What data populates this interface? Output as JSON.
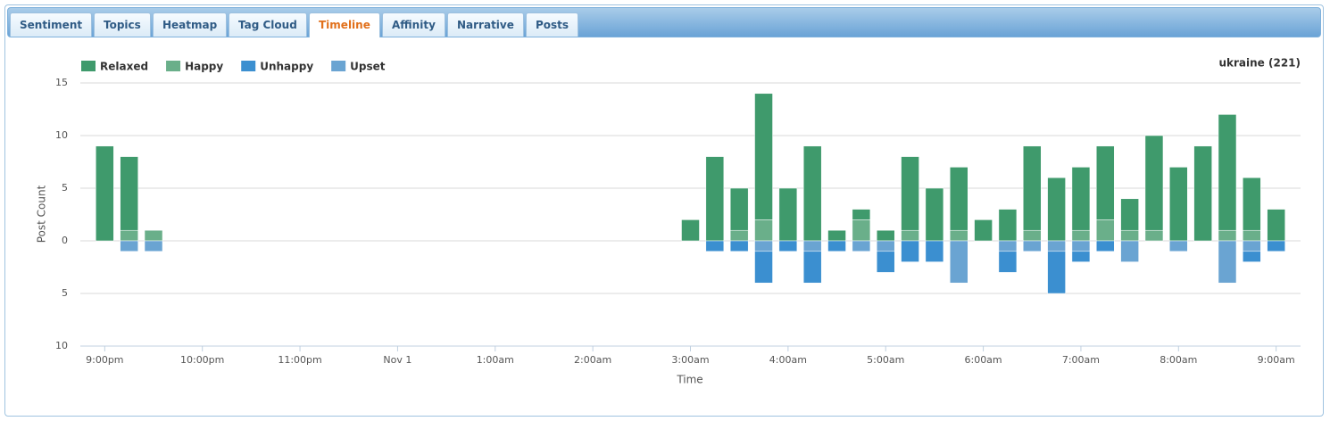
{
  "tabs": [
    {
      "label": "Sentiment",
      "active": false
    },
    {
      "label": "Topics",
      "active": false
    },
    {
      "label": "Heatmap",
      "active": false
    },
    {
      "label": "Tag Cloud",
      "active": false
    },
    {
      "label": "Timeline",
      "active": true
    },
    {
      "label": "Affinity",
      "active": false
    },
    {
      "label": "Narrative",
      "active": false
    },
    {
      "label": "Posts",
      "active": false
    }
  ],
  "chart_data": {
    "type": "bar",
    "title": "ukraine (221)",
    "x_label": "Time",
    "y_label": "Post Count",
    "x": [
      "21:00",
      "21:15",
      "21:30",
      "03:00",
      "03:15",
      "03:30",
      "03:45",
      "04:00",
      "04:15",
      "04:30",
      "04:45",
      "05:00",
      "05:15",
      "05:30",
      "05:45",
      "06:00",
      "06:15",
      "06:30",
      "06:45",
      "07:00",
      "07:15",
      "07:30",
      "07:45",
      "08:00",
      "08:15",
      "08:30",
      "08:45",
      "09:00"
    ],
    "series": [
      {
        "name": "Relaxed",
        "color": "#3f9a6c",
        "values": [
          9,
          7,
          0,
          2,
          8,
          4,
          12,
          5,
          9,
          1,
          1,
          1,
          7,
          5,
          6,
          2,
          3,
          8,
          6,
          6,
          7,
          3,
          9,
          7,
          9,
          11,
          5,
          3
        ]
      },
      {
        "name": "Happy",
        "color": "#6aaf8a",
        "values": [
          0,
          1,
          1,
          0,
          0,
          1,
          2,
          0,
          0,
          0,
          2,
          0,
          1,
          0,
          1,
          0,
          0,
          1,
          0,
          1,
          2,
          1,
          1,
          0,
          0,
          1,
          1,
          0
        ]
      },
      {
        "name": "Unhappy",
        "color": "#3b8fd0",
        "values": [
          0,
          0,
          0,
          0,
          -1,
          -1,
          -3,
          -1,
          -3,
          -1,
          0,
          -2,
          -2,
          -2,
          0,
          0,
          -2,
          0,
          -4,
          -1,
          -1,
          0,
          0,
          0,
          0,
          0,
          -1,
          -1
        ]
      },
      {
        "name": "Upset",
        "color": "#6aa4d2",
        "values": [
          0,
          -1,
          -1,
          0,
          0,
          0,
          -1,
          0,
          -1,
          0,
          -1,
          -1,
          0,
          0,
          -4,
          0,
          -1,
          -1,
          -1,
          -1,
          0,
          -2,
          0,
          -1,
          0,
          -4,
          -1,
          0
        ]
      }
    ],
    "xlim": [
      "20:45",
      "09:15"
    ],
    "xticks": [
      {
        "value": "21:00",
        "label": "9:00pm"
      },
      {
        "value": "22:00",
        "label": "10:00pm"
      },
      {
        "value": "23:00",
        "label": "11:00pm"
      },
      {
        "value": "00:00",
        "label": "Nov 1"
      },
      {
        "value": "01:00",
        "label": "1:00am"
      },
      {
        "value": "02:00",
        "label": "2:00am"
      },
      {
        "value": "03:00",
        "label": "3:00am"
      },
      {
        "value": "04:00",
        "label": "4:00am"
      },
      {
        "value": "05:00",
        "label": "5:00am"
      },
      {
        "value": "06:00",
        "label": "6:00am"
      },
      {
        "value": "07:00",
        "label": "7:00am"
      },
      {
        "value": "08:00",
        "label": "8:00am"
      },
      {
        "value": "09:00",
        "label": "9:00am"
      }
    ],
    "ylim": [
      -10,
      15
    ],
    "yticks": [
      {
        "value": -10,
        "label": "10"
      },
      {
        "value": -5,
        "label": "5"
      },
      0,
      5,
      10,
      15
    ],
    "grid": true,
    "legend": "top-left"
  }
}
